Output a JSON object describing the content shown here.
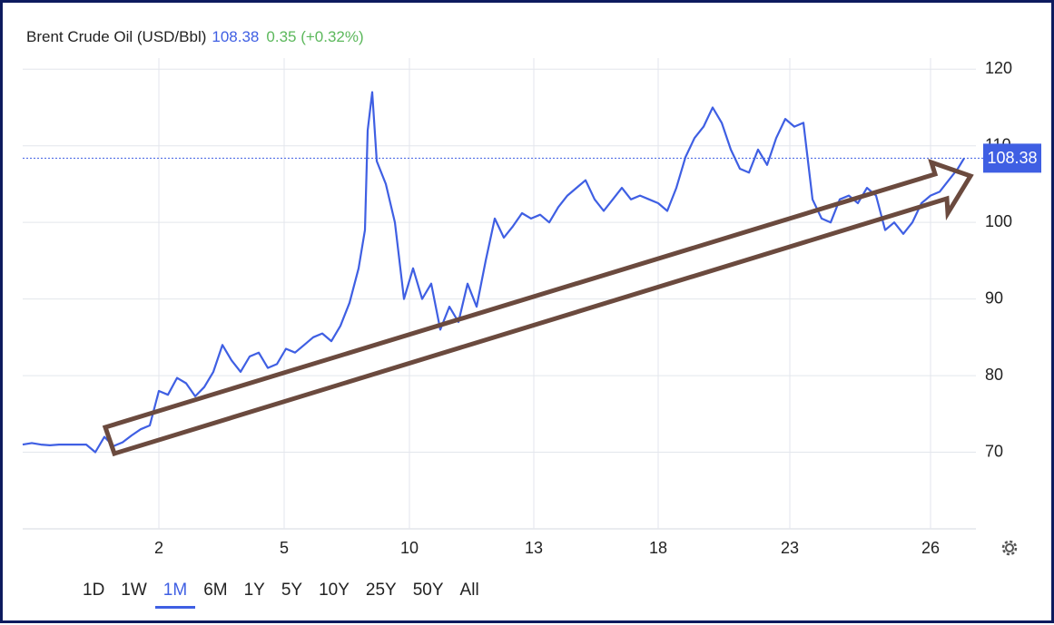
{
  "chart_data": {
    "type": "line",
    "title": "Brent Crude Oil (USD/Bbl)",
    "last_value": 108.38,
    "change_text": "0.35 (+0.32%)",
    "color": "#3f5fe3",
    "x": [
      0,
      1,
      2,
      3,
      4,
      5,
      6,
      7,
      8,
      9,
      10,
      11,
      12,
      13,
      14,
      15,
      16,
      17,
      18,
      19,
      20,
      21,
      22,
      23,
      24,
      25,
      26,
      27,
      28,
      29,
      30,
      31,
      32,
      33,
      34,
      35,
      36,
      37,
      37.7,
      38,
      38.5,
      39,
      40,
      41,
      42,
      43,
      44,
      45,
      46,
      47,
      48,
      49,
      50,
      51,
      52,
      53,
      54,
      55,
      56,
      57,
      58,
      59,
      60,
      61,
      62,
      63,
      64,
      65,
      66,
      67,
      68,
      69,
      70,
      71,
      72,
      73,
      74,
      75,
      76,
      77,
      78,
      79,
      80,
      81,
      82,
      83,
      84,
      85,
      86,
      87,
      88,
      89,
      90,
      91,
      92,
      93,
      94,
      95,
      96,
      97,
      98,
      99,
      100,
      101,
      102,
      103,
      103.7
    ],
    "values": [
      71.0,
      71.2,
      71.0,
      70.9,
      71.0,
      71.0,
      71.0,
      71.0,
      70.0,
      72.0,
      70.8,
      71.3,
      72.2,
      73.0,
      73.5,
      78.0,
      77.5,
      79.7,
      79.0,
      77.3,
      78.5,
      80.5,
      84.0,
      82.0,
      80.5,
      82.5,
      83.0,
      81.0,
      81.5,
      83.5,
      83.0,
      84.0,
      85.0,
      85.5,
      84.5,
      86.5,
      89.5,
      94.0,
      99.0,
      112.0,
      117.0,
      108.0,
      105.0,
      100.0,
      90.0,
      94.0,
      90.0,
      92.0,
      86.0,
      89.0,
      87.0,
      92.0,
      89.0,
      95.0,
      100.5,
      98.0,
      99.5,
      101.2,
      100.5,
      101.0,
      100.0,
      102.0,
      103.5,
      104.5,
      105.5,
      103.0,
      101.5,
      103.0,
      104.5,
      103.0,
      103.5,
      103.0,
      102.5,
      101.5,
      104.5,
      108.5,
      111.0,
      112.5,
      115.0,
      113.0,
      109.5,
      107.0,
      106.5,
      109.5,
      107.5,
      111.0,
      113.5,
      112.5,
      113.0,
      103.0,
      100.5,
      100.0,
      103.0,
      103.5,
      102.5,
      104.5,
      103.5,
      99.0,
      100.0,
      98.5,
      100.0,
      102.5,
      103.5,
      104.0,
      105.5,
      107.0,
      108.38
    ],
    "xlim": [
      0,
      105
    ],
    "xticks": [
      {
        "value": 15,
        "label": "2"
      },
      {
        "value": 28.8,
        "label": "5"
      },
      {
        "value": 42.6,
        "label": "10"
      },
      {
        "value": 56.3,
        "label": "13"
      },
      {
        "value": 70,
        "label": "18"
      },
      {
        "value": 84.5,
        "label": "23"
      },
      {
        "value": 100,
        "label": "26"
      }
    ],
    "ylim": [
      60,
      125
    ],
    "yticks": [
      70,
      80,
      90,
      100,
      110,
      120
    ],
    "grid": true,
    "range_buttons": [
      "1D",
      "1W",
      "1M",
      "6M",
      "1Y",
      "5Y",
      "10Y",
      "25Y",
      "50Y",
      "All"
    ],
    "selected_range_index": 2
  }
}
